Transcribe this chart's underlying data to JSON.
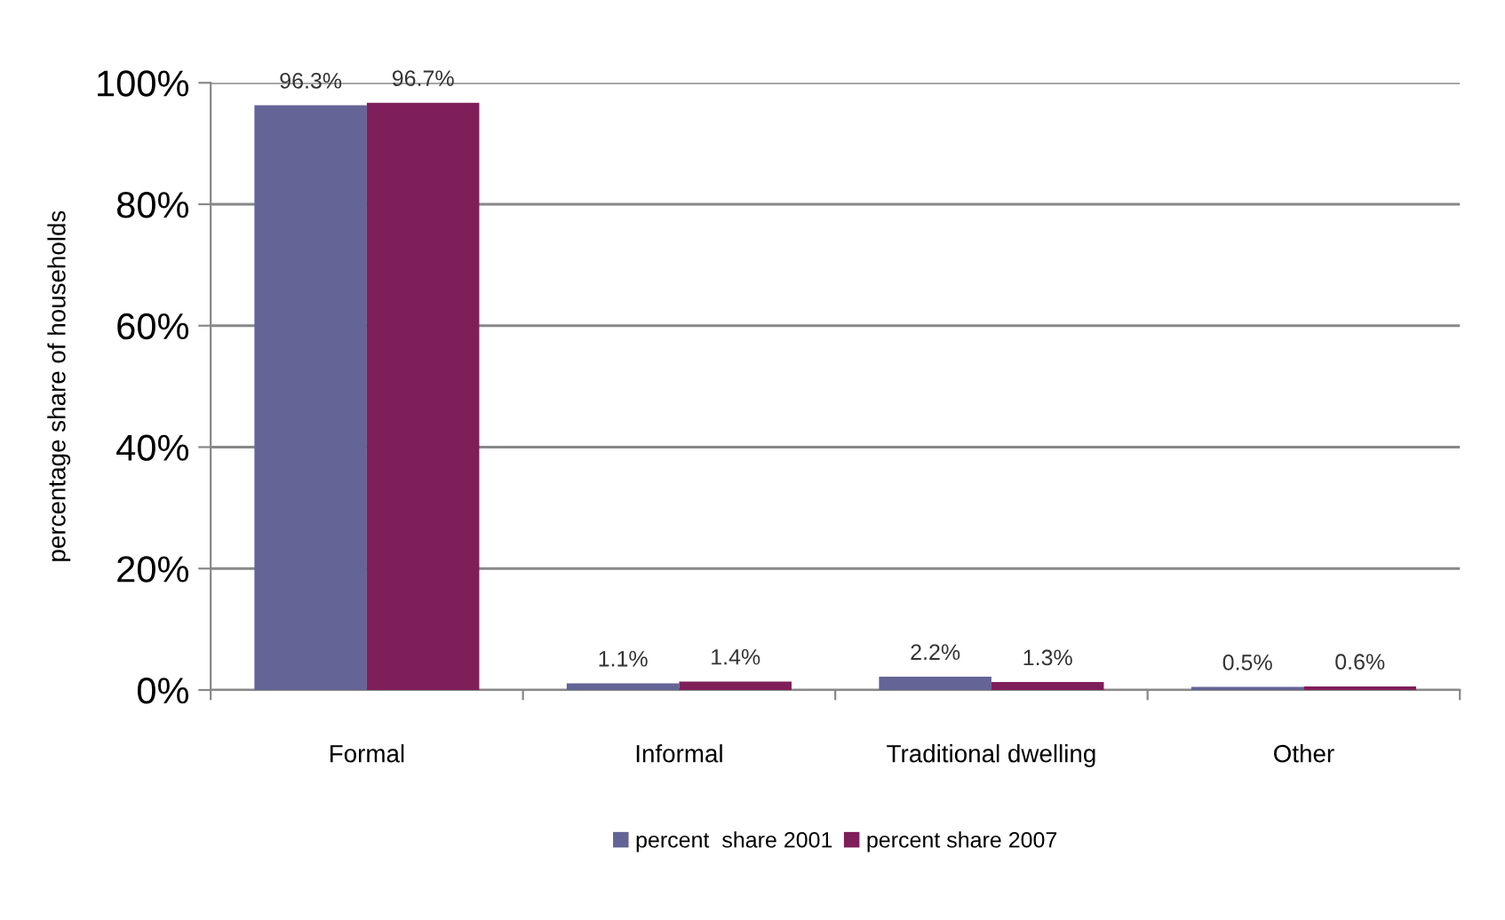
{
  "chart_data": {
    "type": "bar",
    "ylabel": "percentage share of households",
    "categories": [
      "Formal",
      "Informal",
      "Traditional dwelling",
      "Other"
    ],
    "series": [
      {
        "name": "percent  share 2001",
        "color": "#646496",
        "values": [
          96.3,
          1.1,
          2.2,
          0.5
        ],
        "value_labels": [
          "96.3%",
          "1.1%",
          "2.2%",
          "0.5%"
        ]
      },
      {
        "name": "percent share 2007",
        "color": "#7f1f5a",
        "values": [
          96.7,
          1.4,
          1.3,
          0.6
        ],
        "value_labels": [
          "96.7%",
          "1.4%",
          "1.3%",
          "0.6%"
        ]
      }
    ],
    "ylim": [
      0,
      100
    ],
    "yticks": [
      {
        "value": 0,
        "label": "0%"
      },
      {
        "value": 20,
        "label": "20%"
      },
      {
        "value": 40,
        "label": "40%"
      },
      {
        "value": 60,
        "label": "60%"
      },
      {
        "value": 80,
        "label": "80%"
      },
      {
        "value": 100,
        "label": "100%"
      }
    ],
    "grid": "y",
    "legend": "bottom"
  }
}
